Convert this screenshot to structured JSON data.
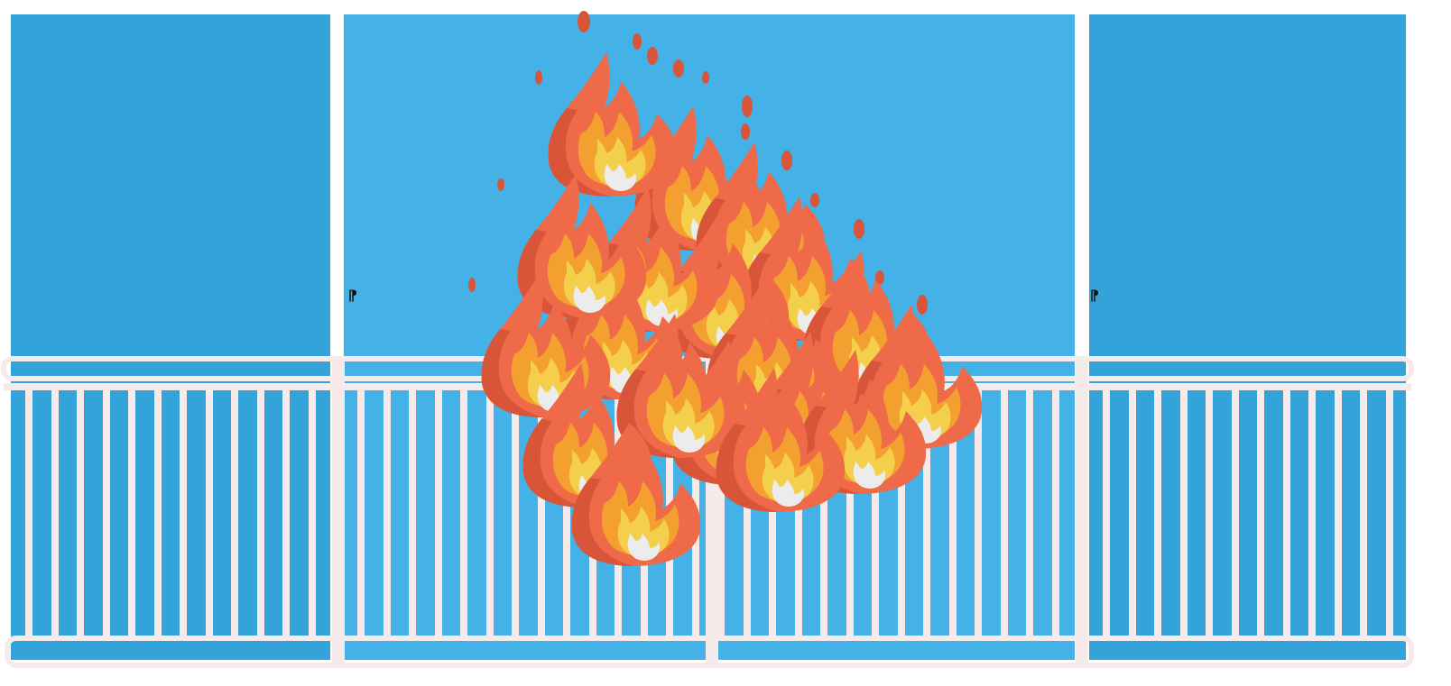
{
  "scene": {
    "description_hidden": false,
    "panel_count": 3,
    "colors": {
      "background": "#ffffff",
      "side_panel": "#33a3d9",
      "center_panel": "#44b2e6",
      "railing": "#f7eaea",
      "flame_outer": "#ef6a48",
      "flame_shadow": "#d9553a",
      "flame_mid": "#f4a030",
      "flame_inner": "#f4cf4c",
      "flame_core": "#ececec"
    }
  },
  "handles": {
    "left_glyph": "⁋",
    "right_glyph": "⁋"
  },
  "fire": {
    "flame_count": 16,
    "icon": "fire-icon"
  }
}
